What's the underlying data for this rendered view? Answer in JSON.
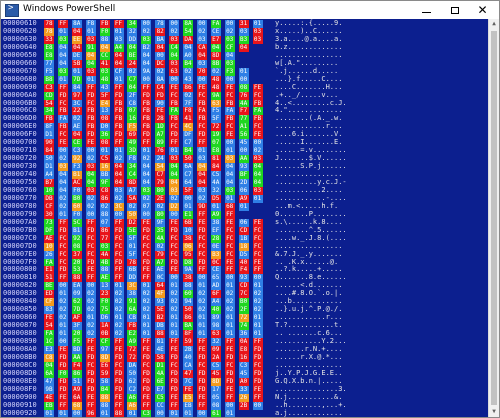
{
  "window": {
    "title": "Windows PowerShell",
    "icon": "powershell-icon",
    "controls": {
      "minimize": "minimize-icon",
      "maximize": "maximize-icon",
      "close": "✕"
    }
  },
  "colors": {
    "console_bg": "#0c1f8f",
    "byte_red": "#e8141a",
    "byte_green": "#1fd620",
    "byte_blue": "#2f7fe6",
    "byte_orange": "#f39a1c"
  },
  "scrollbar": {
    "up": "▲",
    "down": "▼"
  },
  "rows": [
    {
      "addr": "00000610",
      "bytes": [
        "78",
        "FF",
        "8A",
        "F8",
        "FB",
        "FF",
        "34",
        "00",
        "78",
        "00",
        "8A",
        "00",
        "FA",
        "00",
        "31",
        "01"
      ],
      "ascii": "y.....:.{.....9."
    },
    {
      "addr": "00000620",
      "bytes": [
        "78",
        "01",
        "04",
        "01",
        "F0",
        "01",
        "32",
        "02",
        "82",
        "02",
        "54",
        "02",
        "CE",
        "02",
        "03",
        "03"
      ],
      "ascii": "x.....)..C......"
    },
    {
      "addr": "00000630",
      "bytes": [
        "33",
        "03",
        "EE",
        "03",
        "88",
        "03",
        "DD",
        "03",
        "BA",
        "03",
        "DA",
        "03",
        "E7",
        "03",
        "B3",
        "03"
      ],
      "ascii": "3.a....@.a....a."
    },
    {
      "addr": "00000640",
      "bytes": [
        "E8",
        "04",
        "04",
        "91",
        "04",
        "A4",
        "04",
        "B2",
        "04",
        "C4",
        "04",
        "CA",
        "04",
        "CF",
        "04"
      ],
      "ascii": "b.z............."
    },
    {
      "addr": "00000650",
      "bytes": [
        "E8",
        "04",
        "DE",
        "04",
        "CC",
        "04",
        "BE",
        "04",
        "00",
        "04",
        "A0",
        "04",
        "8D",
        "04"
      ],
      "ascii": "................"
    },
    {
      "addr": "00000660",
      "bytes": [
        "77",
        "04",
        "5B",
        "04",
        "41",
        "04",
        "24",
        "04",
        "DC",
        "03",
        "B4",
        "03",
        "8B",
        "03"
      ],
      "ascii": "w[.A.\"........."
    },
    {
      "addr": "00000670",
      "bytes": [
        "F5",
        "03",
        "01",
        "03",
        "03",
        "CF",
        "02",
        "9A",
        "02",
        "63",
        "02",
        "70",
        "02",
        "F3",
        "01"
      ],
      "ascii": "`.j......d....."
    },
    {
      "addr": "00000680",
      "bytes": [
        "B8",
        "01",
        "7D",
        "01",
        "48",
        "01",
        "C7",
        "00",
        "8A",
        "00",
        "43",
        "00",
        "48",
        "00",
        "00"
      ],
      "ascii": "...}.f.....C...."
    },
    {
      "addr": "00000690",
      "bytes": [
        "C3",
        "FF",
        "84",
        "FF",
        "43",
        "FF",
        "04",
        "FF",
        "C4",
        "FE",
        "86",
        "FE",
        "48",
        "FE",
        "08",
        "FE"
      ],
      "ascii": "....C.......H..."
    },
    {
      "addr": "000006A0",
      "bytes": [
        "CD",
        "FD",
        "97",
        "FD",
        "5F",
        "FD",
        "2F",
        "FD",
        "FD",
        "FC",
        "02",
        "FC",
        "9A",
        "FC",
        "76",
        "FC"
      ],
      "ascii": ".+.._/.....v..."
    },
    {
      "addr": "000006B0",
      "bytes": [
        "54",
        "FC",
        "3C",
        "FC",
        "E4",
        "FB",
        "C8",
        "FB",
        "90",
        "FB",
        "7F",
        "FB",
        "63",
        "FB",
        "4A",
        "FB"
      ],
      "ascii": "4..<.........c.J."
    },
    {
      "addr": "000006C0",
      "bytes": [
        "34",
        "FB",
        "22",
        "FB",
        "13",
        "FB",
        "07",
        "FB",
        "FE",
        "FA",
        "F8",
        "FA",
        "F5",
        "FA",
        "F7",
        "FA"
      ],
      "ascii": "4.\"............."
    },
    {
      "addr": "000006D0",
      "bytes": [
        "FB",
        "FA",
        "02",
        "FB",
        "08",
        "FB",
        "16",
        "FB",
        "28",
        "FB",
        "41",
        "FB",
        "5F",
        "FB",
        "77",
        "FB"
      ],
      "ascii": "........(.A._.w."
    },
    {
      "addr": "000006E0",
      "bytes": [
        "8F",
        "FB",
        "AE",
        "FB",
        "D0",
        "FB",
        "F5",
        "FB",
        "1D",
        "FC",
        "4C",
        "FC",
        "72",
        "FC",
        "A1",
        "FC"
      ],
      "ascii": "............r..."
    },
    {
      "addr": "000006F0",
      "bytes": [
        "D1",
        "FC",
        "04",
        "FD",
        "36",
        "FD",
        "69",
        "FD",
        "A7",
        "FD",
        "DF",
        "FD",
        "19",
        "FE",
        "56",
        "FE"
      ],
      "ascii": "....6.i.......V."
    },
    {
      "addr": "00000700",
      "bytes": [
        "90",
        "FE",
        "CE",
        "FE",
        "08",
        "FF",
        "49",
        "FF",
        "89",
        "FF",
        "C7",
        "FF",
        "07",
        "00",
        "45",
        "00"
      ],
      "ascii": "......I.......E."
    },
    {
      "addr": "00000710",
      "bytes": [
        "84",
        "00",
        "C3",
        "00",
        "01",
        "01",
        "3D",
        "01",
        "76",
        "01",
        "B4",
        "01",
        "E8",
        "01",
        "00",
        "02"
      ],
      "ascii": "......=.v........"
    },
    {
      "addr": "00000720",
      "bytes": [
        "50",
        "02",
        "92",
        "02",
        "C5",
        "02",
        "F8",
        "02",
        "24",
        "03",
        "50",
        "03",
        "81",
        "03",
        "AA",
        "03"
      ],
      "ascii": "J.......$.V......"
    },
    {
      "addr": "00000730",
      "bytes": [
        "D1",
        "03",
        "F3",
        "03",
        "16",
        "04",
        "34",
        "04",
        "54",
        "04",
        "6A",
        "04",
        "84",
        "04",
        "93",
        "04"
      ],
      "ascii": "......S.P.j......"
    },
    {
      "addr": "00000740",
      "bytes": [
        "A4",
        "04",
        "B1",
        "04",
        "BB",
        "04",
        "C4",
        "04",
        "C7",
        "04",
        "C7",
        "04",
        "C5",
        "04",
        "BF",
        "04"
      ],
      "ascii": "................"
    },
    {
      "addr": "00000750",
      "bytes": [
        "B7",
        "04",
        "AC",
        "04",
        "9F",
        "04",
        "8D",
        "04",
        "79",
        "04",
        "64",
        "04",
        "4A",
        "04",
        "2D",
        "04"
      ],
      "ascii": "..........y.c.J.-"
    },
    {
      "addr": "00000760",
      "bytes": [
        "10",
        "04",
        "F0",
        "03",
        "C8",
        "03",
        "A7",
        "03",
        "80",
        "03",
        "5F",
        "03",
        "32",
        "03",
        "06",
        "03"
      ],
      "ascii": "...........2...."
    },
    {
      "addr": "00000770",
      "bytes": [
        "DB",
        "02",
        "B0",
        "02",
        "86",
        "02",
        "5A",
        "02",
        "2E",
        "02",
        "00",
        "02",
        "D5",
        "01",
        "A9",
        "01"
      ],
      "ascii": "............-...."
    },
    {
      "addr": "00000780",
      "bytes": [
        "CF",
        "02",
        "60",
        "02",
        "02",
        "3C",
        "02",
        "07",
        "02",
        "D2",
        "01",
        "9D",
        "01",
        "68",
        "01"
      ],
      "ascii": "...m.<.....h.f."
    },
    {
      "addr": "00000790",
      "bytes": [
        "30",
        "01",
        "F0",
        "00",
        "88",
        "00",
        "50",
        "00",
        "80",
        "00",
        "E1",
        "FF",
        "A9",
        "FF"
      ],
      "ascii": "0.......P........"
    },
    {
      "addr": "000007A0",
      "bytes": [
        "73",
        "FF",
        "5C",
        "FF",
        "07",
        "FF",
        "D2",
        "FE",
        "9F",
        "FE",
        "6B",
        "FE",
        "38",
        "FE",
        "06",
        "FE"
      ],
      "ascii": "s.\\......k.8...."
    },
    {
      "addr": "000007B0",
      "bytes": [
        "DF",
        "FD",
        "B1",
        "FD",
        "86",
        "FD",
        "5E",
        "FD",
        "35",
        "FD",
        "10",
        "FD",
        "EF",
        "FC",
        "CD",
        "FC"
      ],
      "ascii": "........^.5......"
    },
    {
      "addr": "000007C0",
      "bytes": [
        "AE",
        "FC",
        "92",
        "FC",
        "77",
        "FC",
        "5F",
        "FC",
        "4A",
        "FC",
        "38",
        "FC",
        "28",
        "FC",
        "1B",
        "FC"
      ],
      "ascii": "....w._.J.8.(...."
    },
    {
      "addr": "000007D0",
      "bytes": [
        "10",
        "FC",
        "08",
        "FC",
        "03",
        "FC",
        "01",
        "FC",
        "02",
        "FC",
        "06",
        "FC",
        "0E",
        "FC",
        "18",
        "FC"
      ],
      "ascii": "................"
    },
    {
      "addr": "000007E0",
      "bytes": [
        "26",
        "FC",
        "37",
        "FC",
        "4A",
        "FC",
        "5F",
        "FC",
        "79",
        "FC",
        "95",
        "FC",
        "B3",
        "FC",
        "D5",
        "FC"
      ],
      "ascii": "&.7.J._.y......."
    },
    {
      "addr": "000007F0",
      "bytes": [
        "FA",
        "FC",
        "20",
        "FD",
        "4B",
        "FD",
        "78",
        "FD",
        "A7",
        "FD",
        "D8",
        "FD",
        "0C",
        "FE",
        "40",
        "FE"
      ],
      "ascii": ".. .K.x......@."
    },
    {
      "addr": "00000800",
      "bytes": [
        "E1",
        "FD",
        "53",
        "FE",
        "88",
        "FF",
        "6B",
        "FE",
        "AE",
        "FE",
        "9A",
        "FF",
        "CE",
        "FF",
        "F4",
        "FF"
      ],
      "ascii": "..?.k.....+....."
    },
    {
      "addr": "00000810",
      "bytes": [
        "51",
        "FF",
        "88",
        "FF",
        "AE",
        "FF",
        "DD",
        "FF",
        "0C",
        "00",
        "38",
        "00",
        "65",
        "00",
        "93",
        "00"
      ],
      "ascii": "Q.......8.e......"
    },
    {
      "addr": "00000820",
      "bytes": [
        "BE",
        "00",
        "EA",
        "00",
        "13",
        "01",
        "3C",
        "01",
        "64",
        "01",
        "88",
        "01",
        "AD",
        "01",
        "CD",
        "01"
      ],
      "ascii": "......<.d......."
    },
    {
      "addr": "00000830",
      "bytes": [
        "ED",
        "01",
        "09",
        "02",
        "23",
        "02",
        "38",
        "02",
        "4F",
        "02",
        "60",
        "02",
        "6F",
        "02",
        "7C",
        "02"
      ],
      "ascii": "....#.8.O.`.o.|."
    },
    {
      "addr": "00000840",
      "bytes": [
        "CF",
        "02",
        "62",
        "02",
        "F0",
        "02",
        "91",
        "02",
        "93",
        "02",
        "94",
        "02",
        "A4",
        "02",
        "B0",
        "02"
      ],
      "ascii": "...b............"
    },
    {
      "addr": "00000850",
      "bytes": [
        "83",
        "02",
        "7D",
        "02",
        "75",
        "02",
        "6A",
        "02",
        "5E",
        "02",
        "50",
        "02",
        "40",
        "02",
        "2F",
        "02"
      ],
      "ascii": "..}.u.j.^.P.@./."
    },
    {
      "addr": "00000860",
      "bytes": [
        "FE",
        "02",
        "AF",
        "01",
        "D6",
        "01",
        "CB",
        "01",
        "B2",
        "01",
        "86",
        "01",
        "89",
        "01",
        "72",
        "01"
      ],
      "ascii": "............r..."
    },
    {
      "addr": "00000870",
      "bytes": [
        "54",
        "01",
        "3F",
        "02",
        "1A",
        "02",
        "FB",
        "01",
        "DB",
        "01",
        "BA",
        "01",
        "98",
        "01",
        "74",
        "01"
      ],
      "ascii": "T.?...........t."
    },
    {
      "addr": "00000880",
      "bytes": [
        "FA",
        "01",
        "20",
        "02",
        "0B",
        "02",
        "E2",
        "01",
        "88",
        "01",
        "8F",
        "01",
        "63",
        "01",
        "36",
        "01"
      ],
      "ascii": ".. .......c.6..."
    },
    {
      "addr": "00000890",
      "bytes": [
        "1C",
        "00",
        "F5",
        "FF",
        "CF",
        "FF",
        "A9",
        "FF",
        "81",
        "FF",
        "59",
        "FF",
        "32",
        "FF",
        "0A",
        "FF"
      ],
      "ascii": "...........Y.2..."
    },
    {
      "addr": "000008A0",
      "bytes": [
        "E3",
        "FE",
        "BD",
        "FE",
        "97",
        "FE",
        "72",
        "FE",
        "4E",
        "FE",
        "2B",
        "FE",
        "09",
        "FE",
        "E8",
        "FD"
      ],
      "ascii": ".......r.N.+...."
    },
    {
      "addr": "000008B0",
      "bytes": [
        "C8",
        "FD",
        "AA",
        "FD",
        "8D",
        "FD",
        "72",
        "FD",
        "58",
        "FD",
        "40",
        "FD",
        "2A",
        "FD",
        "16",
        "FD"
      ],
      "ascii": "......r.X.@.*..."
    },
    {
      "addr": "000008C0",
      "bytes": [
        "04",
        "FD",
        "F4",
        "FC",
        "E6",
        "FC",
        "DA",
        "FC",
        "D1",
        "FC",
        "CA",
        "FC",
        "C5",
        "FC",
        "C3",
        "FC"
      ],
      "ascii": "................"
    },
    {
      "addr": "000008D0",
      "bytes": [
        "6A",
        "F0",
        "86",
        "FD",
        "59",
        "FD",
        "50",
        "FD",
        "4A",
        "FD",
        "47",
        "FD",
        "45",
        "FD",
        "45",
        "FD"
      ],
      "ascii": "j..Y.P.J.G.E.E.."
    },
    {
      "addr": "000008E0",
      "bytes": [
        "47",
        "FD",
        "51",
        "FD",
        "58",
        "FD",
        "62",
        "FD",
        "6E",
        "FD",
        "7C",
        "FD",
        "8D",
        "FD",
        "A0",
        "FD"
      ],
      "ascii": "G.Q.X.b.n.|....."
    },
    {
      "addr": "000008F0",
      "bytes": [
        "9B",
        "FD",
        "A9",
        "FD",
        "B4",
        "FD",
        "C2",
        "FD",
        "E7",
        "FD",
        "FE",
        "FD",
        "17",
        "FE",
        "33",
        "FE"
      ],
      "ascii": "...............3."
    },
    {
      "addr": "00000900",
      "bytes": [
        "4E",
        "FE",
        "6A",
        "FE",
        "88",
        "FE",
        "A6",
        "FE",
        "C5",
        "FE",
        "E5",
        "FE",
        "05",
        "FF",
        "26",
        "FF"
      ],
      "ascii": "N.j...........&."
    },
    {
      "addr": "00000910",
      "bytes": [
        "EB",
        "FF",
        "68",
        "FF",
        "88",
        "FF",
        "A6",
        "FF",
        "CC",
        "FF",
        "EB",
        "FF",
        "08",
        "00",
        "2B",
        "00"
      ],
      "ascii": "..h........,...+."
    },
    {
      "addr": "00000920",
      "bytes": [
        "01",
        "01",
        "00",
        "96",
        "01",
        "88",
        "01",
        "C3",
        "00",
        "01",
        "01",
        "00",
        "61",
        "01"
      ],
      "ascii": "a.j............."
    }
  ]
}
